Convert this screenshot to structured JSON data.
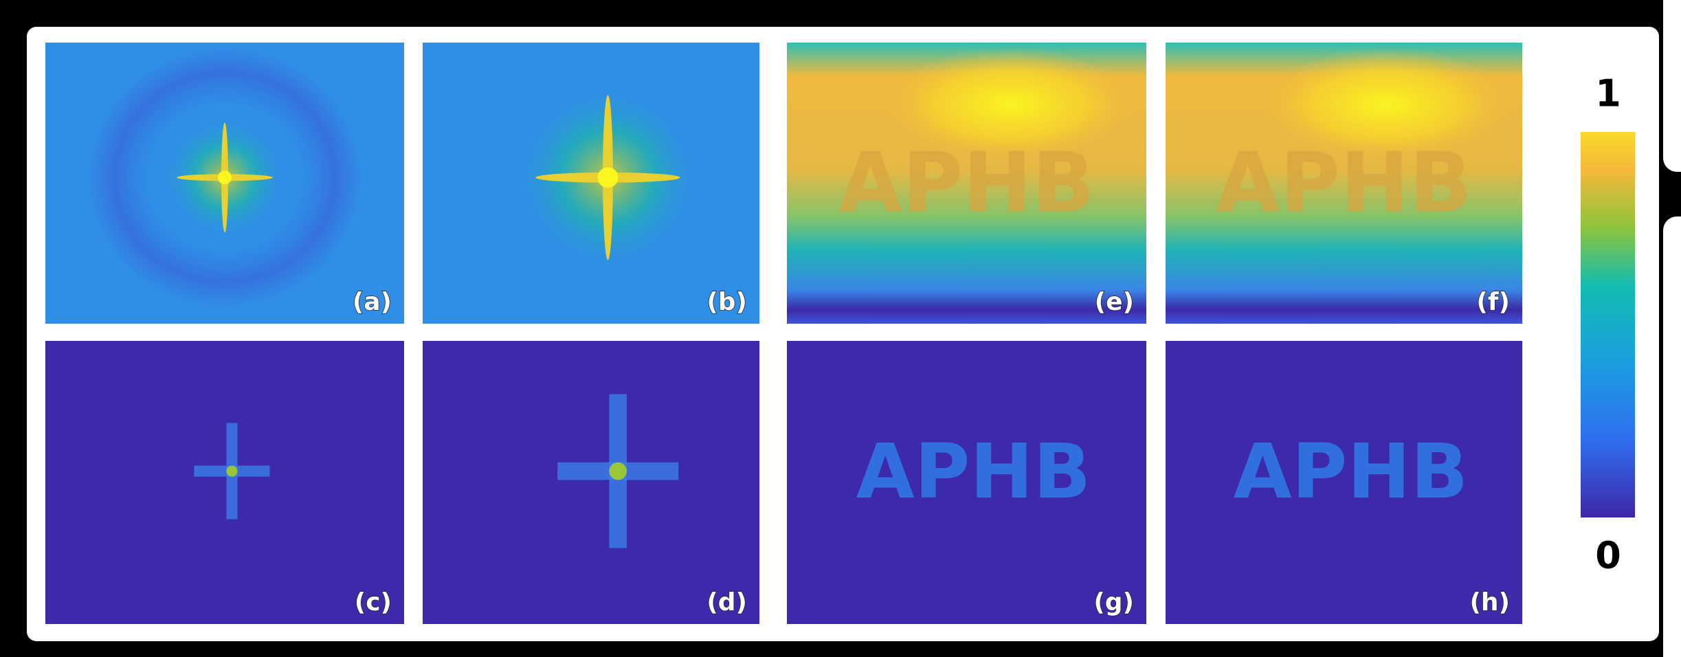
{
  "panels": [
    {
      "label": "(a)"
    },
    {
      "label": "(b)"
    },
    {
      "label": "(c)"
    },
    {
      "label": "(d)"
    },
    {
      "label": "(e)",
      "content_text": "APHB"
    },
    {
      "label": "(f)",
      "content_text": "APHB"
    },
    {
      "label": "(g)",
      "content_text": "APHB"
    },
    {
      "label": "(h)",
      "content_text": "APHB"
    }
  ],
  "colorbar": {
    "top_label": "1",
    "bottom_label": "0"
  }
}
